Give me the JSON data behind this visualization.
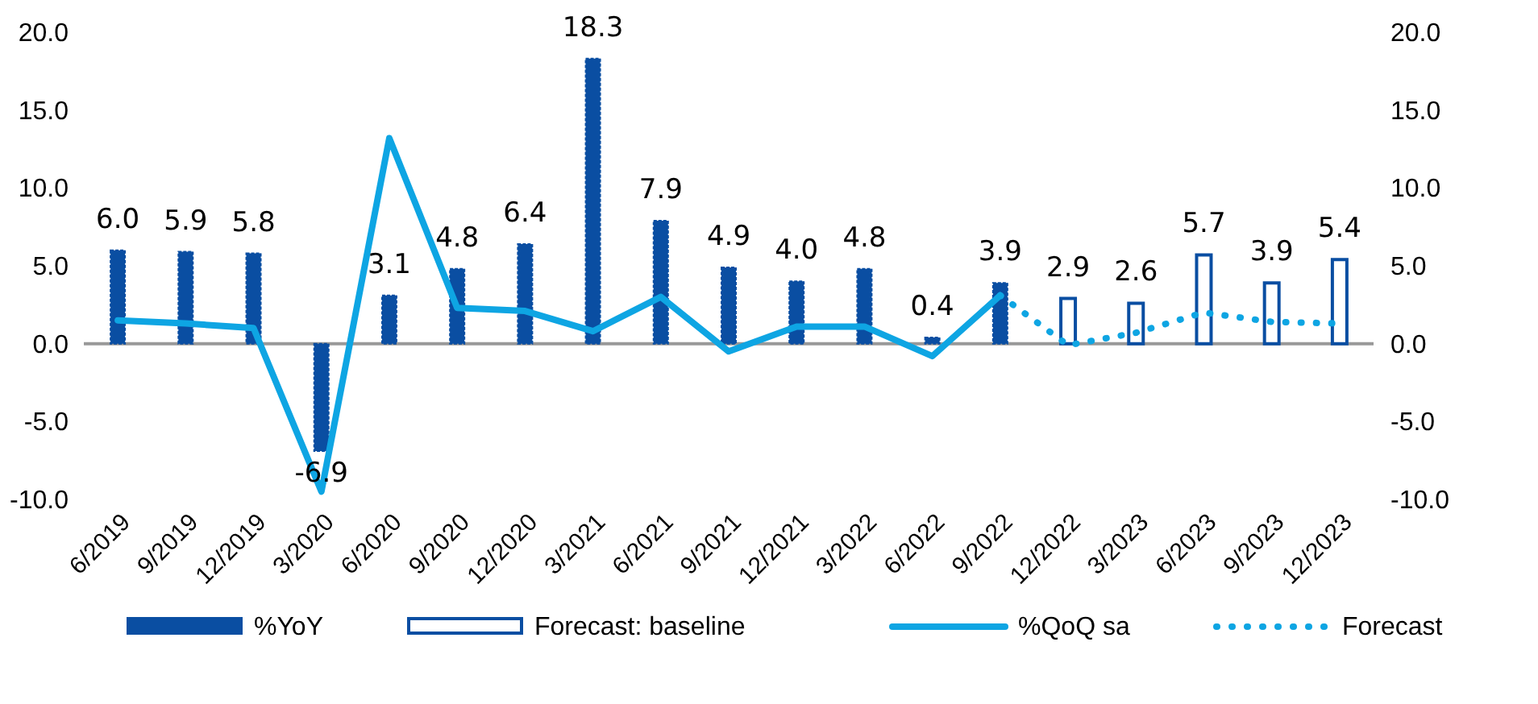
{
  "chart_data": {
    "type": "bar",
    "categories": [
      "6/2019",
      "9/2019",
      "12/2019",
      "3/2020",
      "6/2020",
      "9/2020",
      "12/2020",
      "3/2021",
      "6/2021",
      "9/2021",
      "12/2021",
      "3/2022",
      "6/2022",
      "9/2022",
      "12/2022",
      "3/2023",
      "6/2023",
      "9/2023",
      "12/2023"
    ],
    "series": [
      {
        "name": "%YoY",
        "color": "#0a4ea2",
        "values": [
          6.0,
          5.9,
          5.8,
          -6.9,
          3.1,
          4.8,
          6.4,
          18.3,
          7.9,
          4.9,
          4.0,
          4.8,
          0.4,
          3.9,
          null,
          null,
          null,
          null,
          null
        ],
        "value_labels": [
          "6.0",
          "5.9",
          "5.8",
          "-6.9",
          "3.1",
          "4.8",
          "6.4",
          "18.3",
          "7.9",
          "4.9",
          "4.0",
          "4.8",
          "0.4",
          "3.9",
          null,
          null,
          null,
          null,
          null
        ]
      },
      {
        "name": "Forecast: baseline",
        "color": "#0a4ea2",
        "values": [
          null,
          null,
          null,
          null,
          null,
          null,
          null,
          null,
          null,
          null,
          null,
          null,
          null,
          null,
          2.9,
          2.6,
          5.7,
          3.9,
          5.4
        ],
        "value_labels": [
          null,
          null,
          null,
          null,
          null,
          null,
          null,
          null,
          null,
          null,
          null,
          null,
          null,
          null,
          "2.9",
          "2.6",
          "5.7",
          "3.9",
          "5.4"
        ]
      },
      {
        "name": "%QoQ sa",
        "type": "line",
        "line_style": "solid",
        "color": "#0ea5e3",
        "values": [
          1.5,
          1.3,
          1.0,
          -9.5,
          13.2,
          2.3,
          2.1,
          0.8,
          3.0,
          -0.5,
          1.1,
          1.1,
          -0.8,
          3.1,
          null,
          null,
          null,
          null,
          null
        ]
      },
      {
        "name": "Forecast",
        "type": "line",
        "line_style": "dotted",
        "color": "#0ea5e3",
        "values": [
          null,
          null,
          null,
          null,
          null,
          null,
          null,
          null,
          null,
          null,
          null,
          null,
          null,
          3.1,
          -0.1,
          0.7,
          2.0,
          1.4,
          1.3
        ]
      }
    ],
    "ylim": [
      -10,
      20
    ],
    "yticks": [
      {
        "value": -10,
        "label": "-10.0"
      },
      {
        "value": -5,
        "label": "-5.0"
      },
      {
        "value": 0,
        "label": "0.0"
      },
      {
        "value": 5,
        "label": "5.0"
      },
      {
        "value": 10,
        "label": "10.0"
      },
      {
        "value": 15,
        "label": "15.0"
      },
      {
        "value": 20,
        "label": "20.0"
      }
    ],
    "y2lim": [
      -10,
      20
    ],
    "y2ticks": [
      {
        "value": -10,
        "label": "-10.0"
      },
      {
        "value": -5,
        "label": "-5.0"
      },
      {
        "value": 0,
        "label": "0.0"
      },
      {
        "value": 5,
        "label": "5.0"
      },
      {
        "value": 10,
        "label": "10.0"
      },
      {
        "value": 15,
        "label": "15.0"
      },
      {
        "value": 20,
        "label": "20.0"
      }
    ],
    "legend": "bottom"
  }
}
